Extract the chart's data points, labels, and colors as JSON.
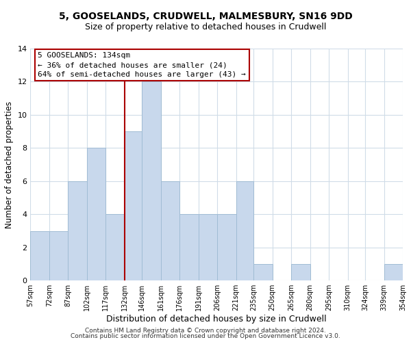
{
  "title_line1": "5, GOOSELANDS, CRUDWELL, MALMESBURY, SN16 9DD",
  "title_line2": "Size of property relative to detached houses in Crudwell",
  "xlabel": "Distribution of detached houses by size in Crudwell",
  "ylabel": "Number of detached properties",
  "bin_edges": [
    57,
    72,
    87,
    102,
    117,
    132,
    146,
    161,
    176,
    191,
    206,
    221,
    235,
    250,
    265,
    280,
    295,
    310,
    324,
    339,
    354
  ],
  "bin_counts": [
    3,
    3,
    6,
    8,
    4,
    9,
    12,
    6,
    4,
    4,
    4,
    6,
    1,
    0,
    1,
    0,
    0,
    0,
    0,
    1
  ],
  "bar_color": "#c8d8ec",
  "bar_edge_color": "#a0bcd4",
  "vline_x": 132,
  "vline_color": "#aa0000",
  "ylim": [
    0,
    14
  ],
  "yticks": [
    0,
    2,
    4,
    6,
    8,
    10,
    12,
    14
  ],
  "annotation_title": "5 GOOSELANDS: 134sqm",
  "annotation_line1": "← 36% of detached houses are smaller (24)",
  "annotation_line2": "64% of semi-detached houses are larger (43) →",
  "annotation_box_facecolor": "#ffffff",
  "annotation_box_edgecolor": "#aa0000",
  "footer_line1": "Contains HM Land Registry data © Crown copyright and database right 2024.",
  "footer_line2": "Contains public sector information licensed under the Open Government Licence v3.0.",
  "tick_labels": [
    "57sqm",
    "72sqm",
    "87sqm",
    "102sqm",
    "117sqm",
    "132sqm",
    "146sqm",
    "161sqm",
    "176sqm",
    "191sqm",
    "206sqm",
    "221sqm",
    "235sqm",
    "250sqm",
    "265sqm",
    "280sqm",
    "295sqm",
    "310sqm",
    "324sqm",
    "339sqm",
    "354sqm"
  ],
  "background_color": "#ffffff",
  "grid_color": "#d0dce8",
  "title1_fontsize": 10,
  "title2_fontsize": 9,
  "xlabel_fontsize": 9,
  "ylabel_fontsize": 8.5,
  "tick_fontsize": 7,
  "annotation_fontsize": 8,
  "footer_fontsize": 6.5
}
